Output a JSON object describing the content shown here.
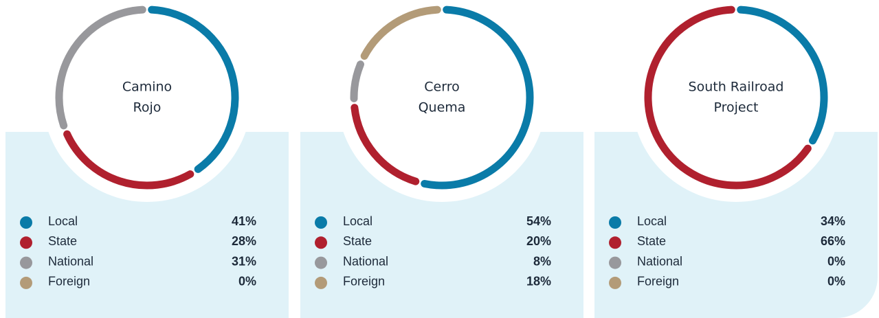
{
  "chart_data": [
    {
      "type": "donut",
      "title": [
        "Camino",
        "Rojo"
      ],
      "categories": [
        "Local",
        "State",
        "National",
        "Foreign"
      ],
      "values": [
        41,
        28,
        31,
        0
      ],
      "value_labels": [
        "41%",
        "28%",
        "31%",
        "0%"
      ],
      "colors": [
        "#0a7ba8",
        "#b0202e",
        "#98989c",
        "#b39b78"
      ]
    },
    {
      "type": "donut",
      "title": [
        "Cerro",
        "Quema"
      ],
      "categories": [
        "Local",
        "State",
        "National",
        "Foreign"
      ],
      "values": [
        54,
        20,
        8,
        18
      ],
      "value_labels": [
        "54%",
        "20%",
        "8%",
        "18%"
      ],
      "colors": [
        "#0a7ba8",
        "#b0202e",
        "#98989c",
        "#b39b78"
      ]
    },
    {
      "type": "donut",
      "title": [
        "South Railroad",
        "Project"
      ],
      "categories": [
        "Local",
        "State",
        "National",
        "Foreign"
      ],
      "values": [
        34,
        66,
        0,
        0
      ],
      "value_labels": [
        "34%",
        "66%",
        "0%",
        "0%"
      ],
      "colors": [
        "#0a7ba8",
        "#b0202e",
        "#98989c",
        "#b39b78"
      ]
    }
  ]
}
